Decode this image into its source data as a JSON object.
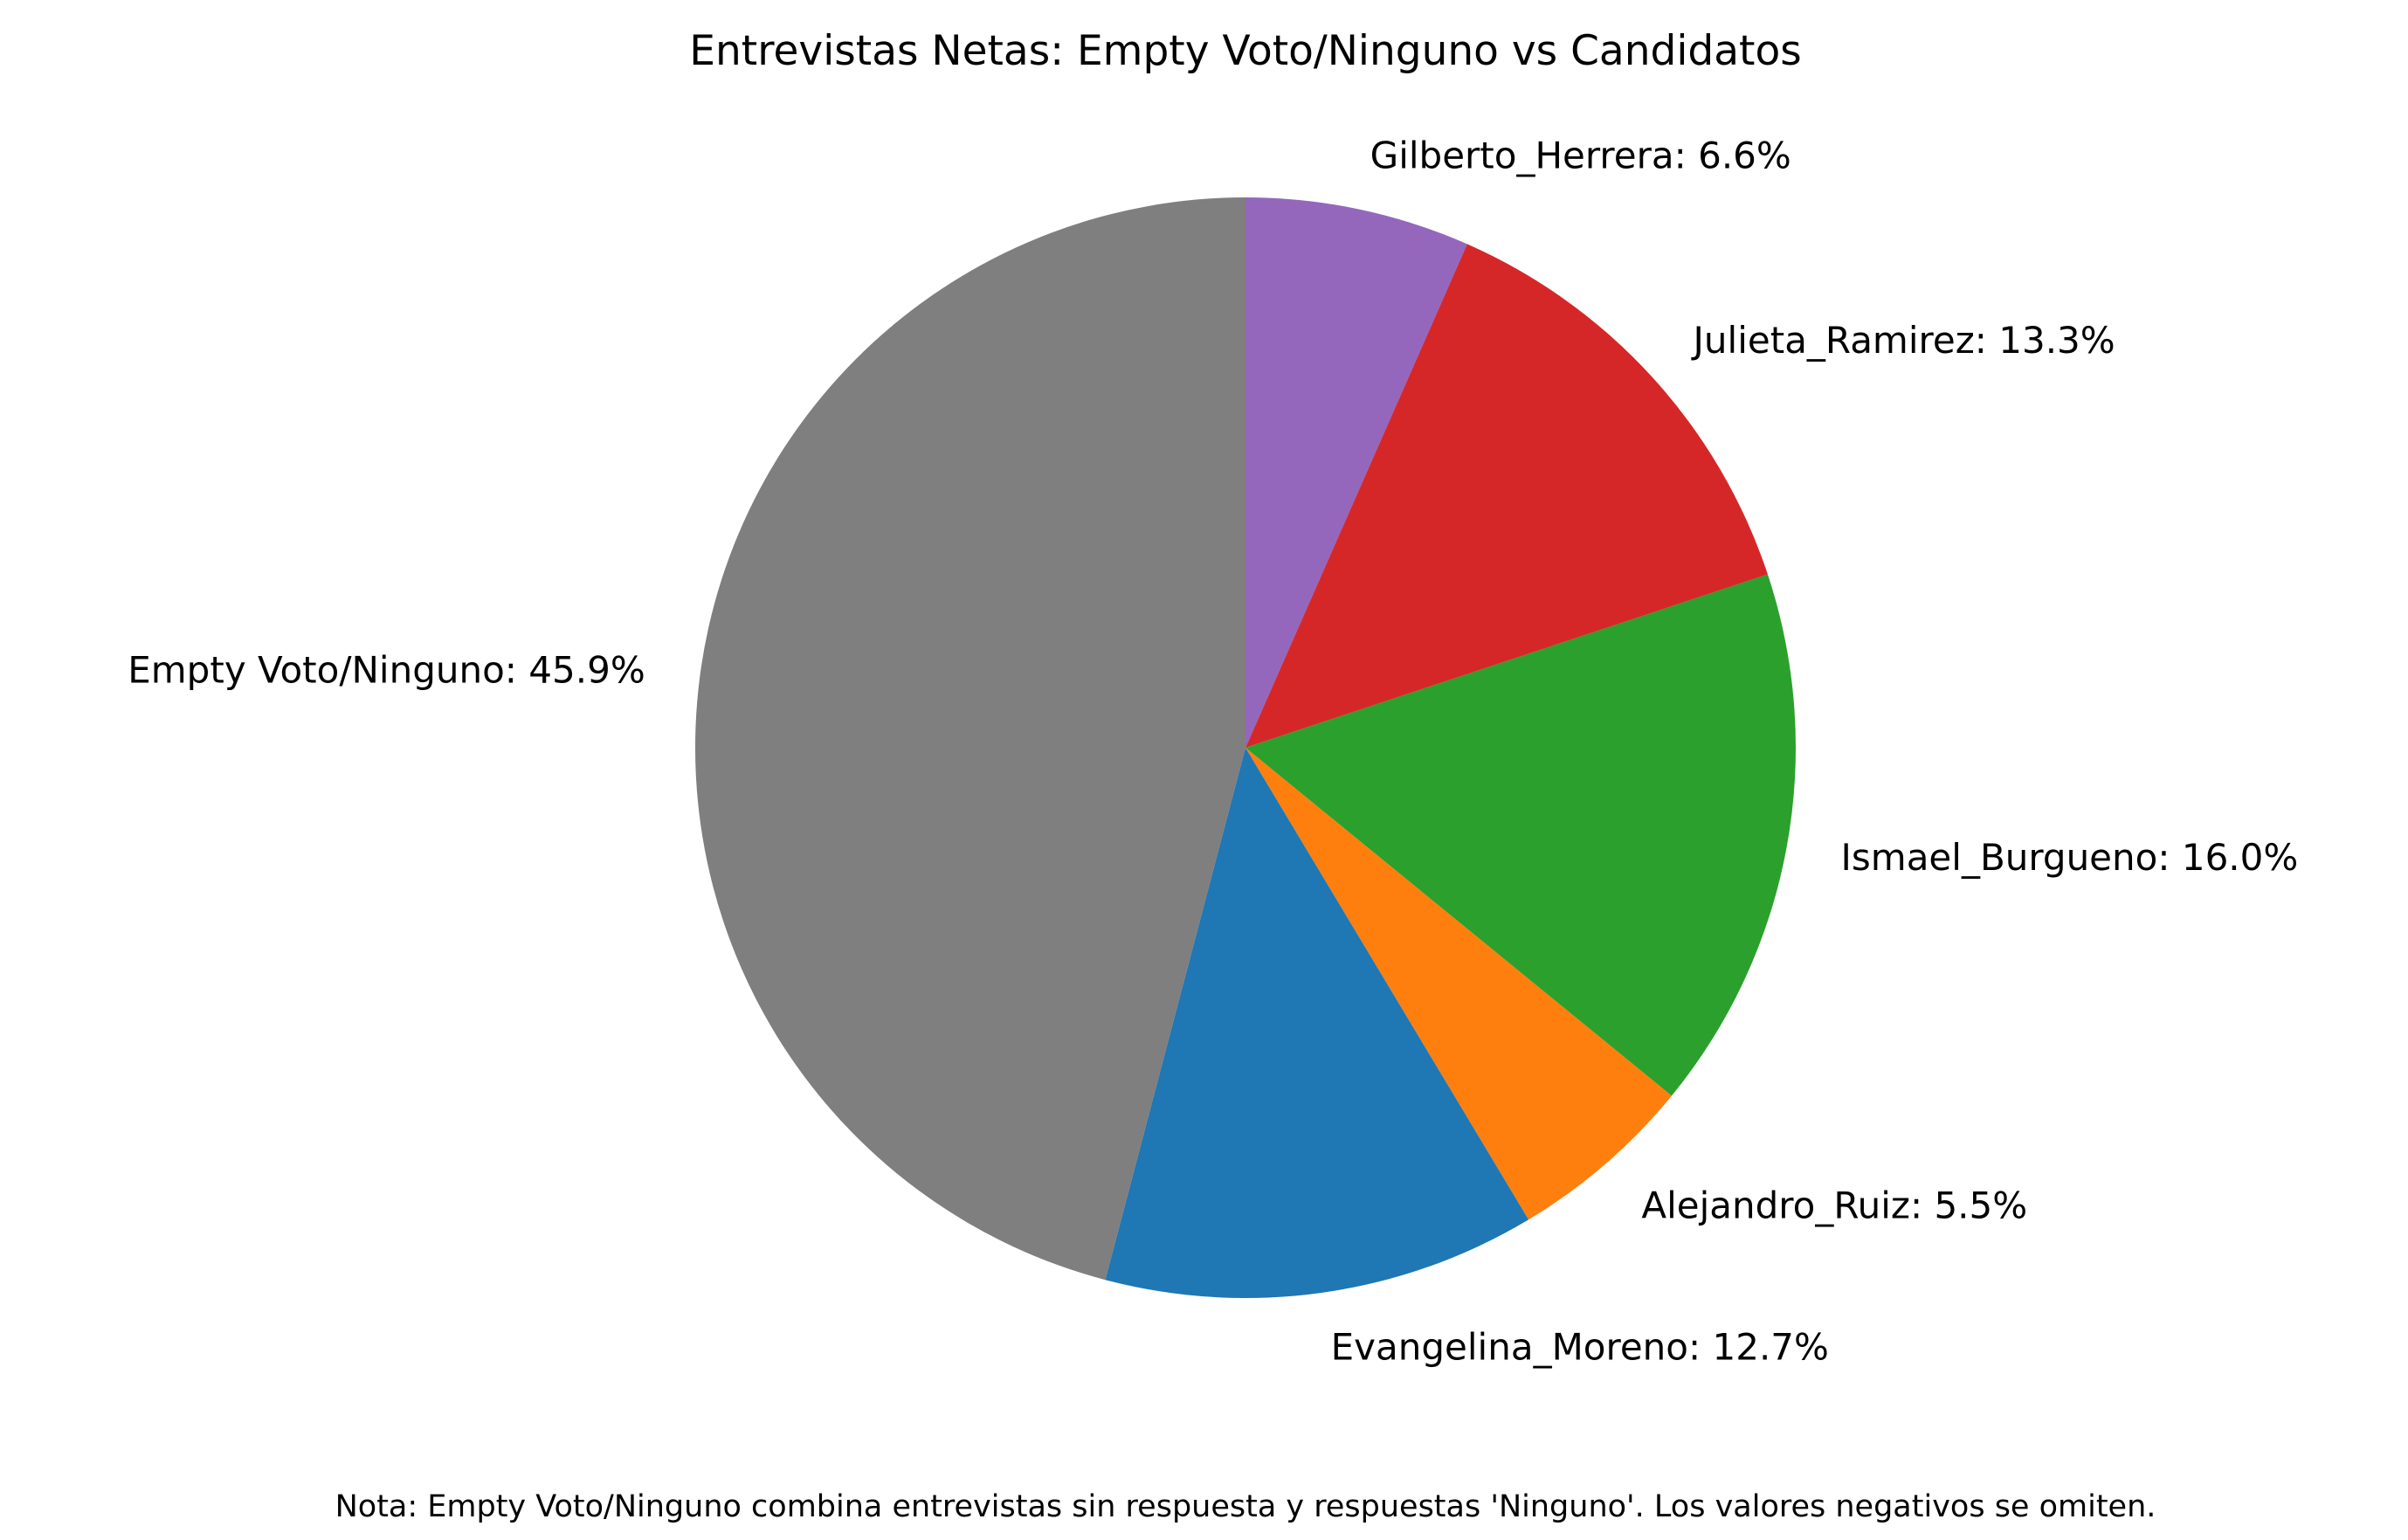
{
  "chart_data": {
    "type": "pie",
    "title": "Entrevistas Netas: Empty Voto/Ninguno vs Candidatos",
    "note": "Nota: Empty Voto/Ninguno combina entrevistas sin respuesta y respuestas 'Ninguno'. Los valores negativos se omiten.",
    "start_angle_deg": 90,
    "direction": "clockwise",
    "slices": [
      {
        "label": "Gilberto_Herrera: 6.6%",
        "value": 6.6,
        "color": "#9467bd"
      },
      {
        "label": "Julieta_Ramirez: 13.3%",
        "value": 13.3,
        "color": "#d62728"
      },
      {
        "label": "Ismael_Burgueno: 16.0%",
        "value": 16.0,
        "color": "#2ca02c"
      },
      {
        "label": "Alejandro_Ruiz: 5.5%",
        "value": 5.5,
        "color": "#ff7f0e"
      },
      {
        "label": "Evangelina_Moreno: 12.7%",
        "value": 12.7,
        "color": "#1f77b4"
      },
      {
        "label": "Empty Voto/Ninguno: 45.9%",
        "value": 45.9,
        "color": "#7f7f7f"
      }
    ]
  }
}
